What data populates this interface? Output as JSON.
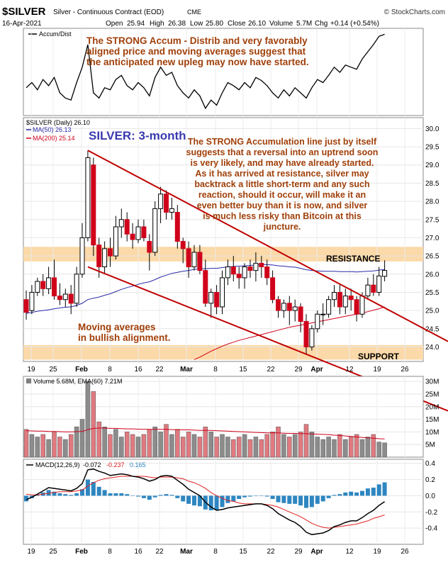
{
  "header": {
    "symbol": "$SILVER",
    "contract": "Silver - Continuous Contract (EOD)",
    "exchange": "CME",
    "source": "© StockCharts.com",
    "date": "16-Apr-2021",
    "open_label": "Open",
    "open": "25.94",
    "high_label": "High",
    "high": "26.38",
    "low_label": "Low",
    "low": "25.80",
    "close_label": "Close",
    "close": "26.10",
    "volume_label": "Volume",
    "volume": "5.7M",
    "chg_label": "Chg",
    "chg": "+0.14 (+0.54%)"
  },
  "colors": {
    "up": "#808080",
    "down": "#d0021b",
    "ma50": "#2a2aa8",
    "ma200": "#d0021b",
    "trendline": "#c00000",
    "zone": "#fbd9a8",
    "note": "#a0400a",
    "title_blue": "#3a3ab0",
    "macd_hist": "#2e86c1",
    "macd_line": "#000000",
    "signal_line": "#e02020"
  },
  "accum_panel": {
    "label": "Accum/Dist",
    "note": [
      "The STRONG Accum - Distrib and very favorably",
      "aligned price and moving averages suggest that",
      "the anticipated new upleg may now have started."
    ]
  },
  "price_panel": {
    "legend_symbol": "$SILVER (Daily) 26.10",
    "legend_ma50": "MA(50) 26.13",
    "legend_ma200": "MA(200) 25.14",
    "title": "SILVER: 3-month",
    "note": [
      "The STRONG Accumulation line just by itself",
      "suggests that a reversal into an uptrend soon",
      "is very likely, and may have already started.",
      "As it has arrived at resistance, silver may",
      "backtrack a little short-term and any such",
      "reaction, should it occur, will make it an",
      "even better buy than it is now, and silver",
      "is much less risky than Bitcoin at this",
      "juncture."
    ],
    "ma_note": [
      "Moving    averages",
      "in bullish alignment."
    ],
    "resistance_label": "RESISTANCE",
    "support_label": "SUPPORT"
  },
  "volume_panel": {
    "legend": "Volume 5.68M, EMA(60) 7.21M"
  },
  "macd_panel": {
    "legend_prefix": "MACD(12,26,9)",
    "macd": "-0.072",
    "signal": "-0.237",
    "hist": "0.165"
  },
  "chart_data": {
    "type": "candlestick",
    "title": "SILVER: 3-month",
    "x_tick_labels": [
      "19",
      "25",
      "Feb",
      "8",
      "16",
      "22",
      "Mar",
      "8",
      "15",
      "22",
      "29",
      "Apr",
      "12",
      "19",
      "26"
    ],
    "price_ylim": [
      23.6,
      30.3
    ],
    "price_ticks": [
      "30.0",
      "29.5",
      "29.0",
      "28.5",
      "28.0",
      "27.5",
      "27.0",
      "26.5",
      "26.0",
      "25.5",
      "25.0",
      "24.5",
      "24.0"
    ],
    "ohlc": [
      [
        25.3,
        25.55,
        24.75,
        24.95
      ],
      [
        25.0,
        25.7,
        24.9,
        25.5
      ],
      [
        25.5,
        25.9,
        25.4,
        25.8
      ],
      [
        25.8,
        26.0,
        25.4,
        25.6
      ],
      [
        25.6,
        26.2,
        25.45,
        25.9
      ],
      [
        25.9,
        26.4,
        25.3,
        25.4
      ],
      [
        25.4,
        25.75,
        25.15,
        25.3
      ],
      [
        25.3,
        25.6,
        25.1,
        25.45
      ],
      [
        25.45,
        25.7,
        24.9,
        25.2
      ],
      [
        25.2,
        26.2,
        25.1,
        26.0
      ],
      [
        26.0,
        27.4,
        25.9,
        27.0
      ],
      [
        27.0,
        29.4,
        26.9,
        29.2
      ],
      [
        29.0,
        29.2,
        26.5,
        26.8
      ],
      [
        26.8,
        27.0,
        25.9,
        26.2
      ],
      [
        26.2,
        26.9,
        26.0,
        26.7
      ],
      [
        26.7,
        27.0,
        26.2,
        26.5
      ],
      [
        26.5,
        27.6,
        26.4,
        27.3
      ],
      [
        27.3,
        27.8,
        27.0,
        27.5
      ],
      [
        27.5,
        27.7,
        26.9,
        27.1
      ],
      [
        27.1,
        27.4,
        26.7,
        26.95
      ],
      [
        26.95,
        27.5,
        26.85,
        27.3
      ],
      [
        27.3,
        27.5,
        26.9,
        27.0
      ],
      [
        26.9,
        27.1,
        26.1,
        26.6
      ],
      [
        26.6,
        28.0,
        26.5,
        27.8
      ],
      [
        27.8,
        28.4,
        27.4,
        28.2
      ],
      [
        28.2,
        28.3,
        27.5,
        27.7
      ],
      [
        27.7,
        28.1,
        27.5,
        27.8
      ],
      [
        27.7,
        27.9,
        26.7,
        26.9
      ],
      [
        26.9,
        27.0,
        26.3,
        26.7
      ],
      [
        26.7,
        26.9,
        25.9,
        26.2
      ],
      [
        26.2,
        26.8,
        26.1,
        26.6
      ],
      [
        26.6,
        26.8,
        26.0,
        26.1
      ],
      [
        26.1,
        26.4,
        25.1,
        25.2
      ],
      [
        25.2,
        25.6,
        24.8,
        25.5
      ],
      [
        25.5,
        25.7,
        24.9,
        25.1
      ],
      [
        25.1,
        26.1,
        24.9,
        25.9
      ],
      [
        25.9,
        26.4,
        25.7,
        26.2
      ],
      [
        26.2,
        26.5,
        25.8,
        26.0
      ],
      [
        26.0,
        26.2,
        25.6,
        25.9
      ],
      [
        25.9,
        26.3,
        25.6,
        26.2
      ],
      [
        26.2,
        26.4,
        25.9,
        26.1
      ],
      [
        26.1,
        26.6,
        25.8,
        26.3
      ],
      [
        26.3,
        26.5,
        25.9,
        26.2
      ],
      [
        26.2,
        26.4,
        25.7,
        25.9
      ],
      [
        25.9,
        26.1,
        25.2,
        25.3
      ],
      [
        25.3,
        25.4,
        24.8,
        25.0
      ],
      [
        25.0,
        25.3,
        24.8,
        25.2
      ],
      [
        25.2,
        25.4,
        24.6,
        25.0
      ],
      [
        25.0,
        25.3,
        24.7,
        25.1
      ],
      [
        25.1,
        25.2,
        24.4,
        24.7
      ],
      [
        24.7,
        24.9,
        23.8,
        24.0
      ],
      [
        24.0,
        24.6,
        23.9,
        24.5
      ],
      [
        24.5,
        25.0,
        24.4,
        24.9
      ],
      [
        24.9,
        25.2,
        24.6,
        24.9
      ],
      [
        24.9,
        25.4,
        24.8,
        25.3
      ],
      [
        25.3,
        25.7,
        25.1,
        25.5
      ],
      [
        25.5,
        25.7,
        24.9,
        25.1
      ],
      [
        25.1,
        25.6,
        24.9,
        25.4
      ],
      [
        25.4,
        25.6,
        25.0,
        25.3
      ],
      [
        25.3,
        25.4,
        24.7,
        24.9
      ],
      [
        24.9,
        25.5,
        24.8,
        25.4
      ],
      [
        25.4,
        25.9,
        25.3,
        25.7
      ],
      [
        25.7,
        26.0,
        25.4,
        25.5
      ],
      [
        25.5,
        26.2,
        25.4,
        25.95
      ],
      [
        25.94,
        26.38,
        25.8,
        26.1
      ]
    ],
    "ma50": [
      24.92,
      24.95,
      24.98,
      25.0,
      25.02,
      25.05,
      25.07,
      25.09,
      25.1,
      25.14,
      25.2,
      25.3,
      25.34,
      25.37,
      25.42,
      25.46,
      25.52,
      25.58,
      25.63,
      25.67,
      25.72,
      25.76,
      25.79,
      25.85,
      25.92,
      25.97,
      26.02,
      26.05,
      26.08,
      26.1,
      26.13,
      26.15,
      26.15,
      26.16,
      26.16,
      26.18,
      26.2,
      26.21,
      26.22,
      26.23,
      26.24,
      26.25,
      26.26,
      26.26,
      26.25,
      26.23,
      26.22,
      26.2,
      26.19,
      26.16,
      26.12,
      26.1,
      26.09,
      26.08,
      26.08,
      26.08,
      26.07,
      26.07,
      26.07,
      26.06,
      26.07,
      26.08,
      26.09,
      26.11,
      26.13
    ],
    "ma200_from_index": 30,
    "ma200": [
      23.65,
      23.72,
      23.8,
      23.88,
      23.95,
      24.02,
      24.08,
      24.13,
      24.18,
      24.22,
      24.26,
      24.3,
      24.34,
      24.38,
      24.42,
      24.46,
      24.5,
      24.54,
      24.57,
      24.6,
      24.63,
      24.66,
      24.69,
      24.72,
      24.75,
      24.78,
      24.81,
      24.84,
      24.87,
      24.9,
      24.93,
      24.97,
      25.01,
      25.05,
      25.1
    ],
    "resistance_zone": [
      26.35,
      26.75
    ],
    "support_zone": [
      23.65,
      24.05
    ],
    "upper_trendline": [
      [
        11,
        29.4
      ],
      [
        60,
        25.4
      ]
    ],
    "lower_trendline": [
      [
        11,
        26.2
      ],
      [
        50,
        23.8
      ]
    ],
    "volume_ylim": [
      0,
      32
    ],
    "volume_ticks": [
      "30M",
      "25M",
      "20M",
      "15M",
      "10M",
      "5M"
    ],
    "volume_m": [
      11,
      9,
      8,
      9,
      7,
      10,
      8,
      7,
      9,
      12,
      15,
      30,
      26,
      14,
      12,
      9,
      11,
      8,
      10,
      9,
      8,
      9,
      11,
      12,
      10,
      13,
      9,
      11,
      8,
      10,
      9,
      8,
      12,
      10,
      8,
      9,
      8,
      7,
      8,
      9,
      7,
      8,
      7,
      9,
      10,
      12,
      9,
      8,
      9,
      10,
      13,
      10,
      8,
      7,
      8,
      7,
      9,
      7,
      8,
      9,
      7,
      8,
      9,
      6,
      5.68
    ],
    "volume_ema": [
      10.5,
      10.4,
      10.3,
      10.3,
      10.2,
      10.2,
      10.1,
      10.0,
      10.0,
      10.1,
      10.2,
      10.9,
      11.4,
      11.5,
      11.5,
      11.4,
      11.4,
      11.3,
      11.2,
      11.2,
      11.1,
      11.0,
      11.0,
      11.0,
      11.0,
      11.0,
      10.9,
      10.9,
      10.8,
      10.8,
      10.7,
      10.6,
      10.6,
      10.6,
      10.5,
      10.4,
      10.3,
      10.2,
      10.1,
      10.0,
      9.9,
      9.8,
      9.7,
      9.6,
      9.6,
      9.6,
      9.5,
      9.4,
      9.4,
      9.3,
      9.3,
      9.2,
      9.1,
      9.0,
      8.9,
      8.7,
      8.6,
      8.4,
      8.2,
      8.0,
      7.8,
      7.6,
      7.5,
      7.3,
      7.21
    ],
    "macd_ylim": [
      -0.6,
      0.45
    ],
    "macd_ticks": [
      "0.4",
      "0.2",
      "0.0",
      "-0.2",
      "-0.4"
    ],
    "macd": [
      -0.05,
      -0.02,
      0.02,
      0.06,
      0.1,
      0.09,
      0.08,
      0.07,
      0.06,
      0.09,
      0.15,
      0.32,
      0.33,
      0.3,
      0.28,
      0.25,
      0.26,
      0.27,
      0.26,
      0.24,
      0.23,
      0.21,
      0.18,
      0.2,
      0.24,
      0.25,
      0.24,
      0.19,
      0.14,
      0.08,
      0.04,
      0.0,
      -0.08,
      -0.14,
      -0.18,
      -0.17,
      -0.15,
      -0.14,
      -0.13,
      -0.12,
      -0.11,
      -0.1,
      -0.1,
      -0.12,
      -0.16,
      -0.22,
      -0.26,
      -0.3,
      -0.33,
      -0.38,
      -0.45,
      -0.48,
      -0.47,
      -0.46,
      -0.43,
      -0.38,
      -0.36,
      -0.33,
      -0.31,
      -0.31,
      -0.27,
      -0.22,
      -0.18,
      -0.12,
      -0.072
    ],
    "signal": [
      0.02,
      0.01,
      0.01,
      0.02,
      0.03,
      0.04,
      0.05,
      0.05,
      0.05,
      0.06,
      0.07,
      0.12,
      0.16,
      0.19,
      0.21,
      0.22,
      0.23,
      0.24,
      0.24,
      0.24,
      0.24,
      0.24,
      0.23,
      0.22,
      0.23,
      0.23,
      0.23,
      0.22,
      0.21,
      0.18,
      0.16,
      0.13,
      0.09,
      0.04,
      0.0,
      -0.03,
      -0.06,
      -0.07,
      -0.09,
      -0.1,
      -0.1,
      -0.1,
      -0.1,
      -0.11,
      -0.12,
      -0.14,
      -0.17,
      -0.2,
      -0.23,
      -0.26,
      -0.3,
      -0.34,
      -0.37,
      -0.39,
      -0.4,
      -0.39,
      -0.38,
      -0.37,
      -0.36,
      -0.35,
      -0.33,
      -0.31,
      -0.28,
      -0.26,
      -0.237
    ],
    "accum_dist": [
      50,
      55,
      48,
      58,
      52,
      60,
      45,
      40,
      38,
      55,
      70,
      92,
      45,
      40,
      50,
      48,
      58,
      62,
      52,
      48,
      55,
      50,
      42,
      60,
      70,
      62,
      65,
      52,
      45,
      40,
      48,
      42,
      30,
      38,
      33,
      45,
      55,
      52,
      48,
      55,
      50,
      60,
      57,
      52,
      45,
      40,
      48,
      42,
      50,
      45,
      40,
      50,
      58,
      55,
      62,
      70,
      65,
      72,
      70,
      68,
      78,
      85,
      92,
      100,
      102
    ],
    "accum_ylim": [
      25,
      105
    ]
  }
}
